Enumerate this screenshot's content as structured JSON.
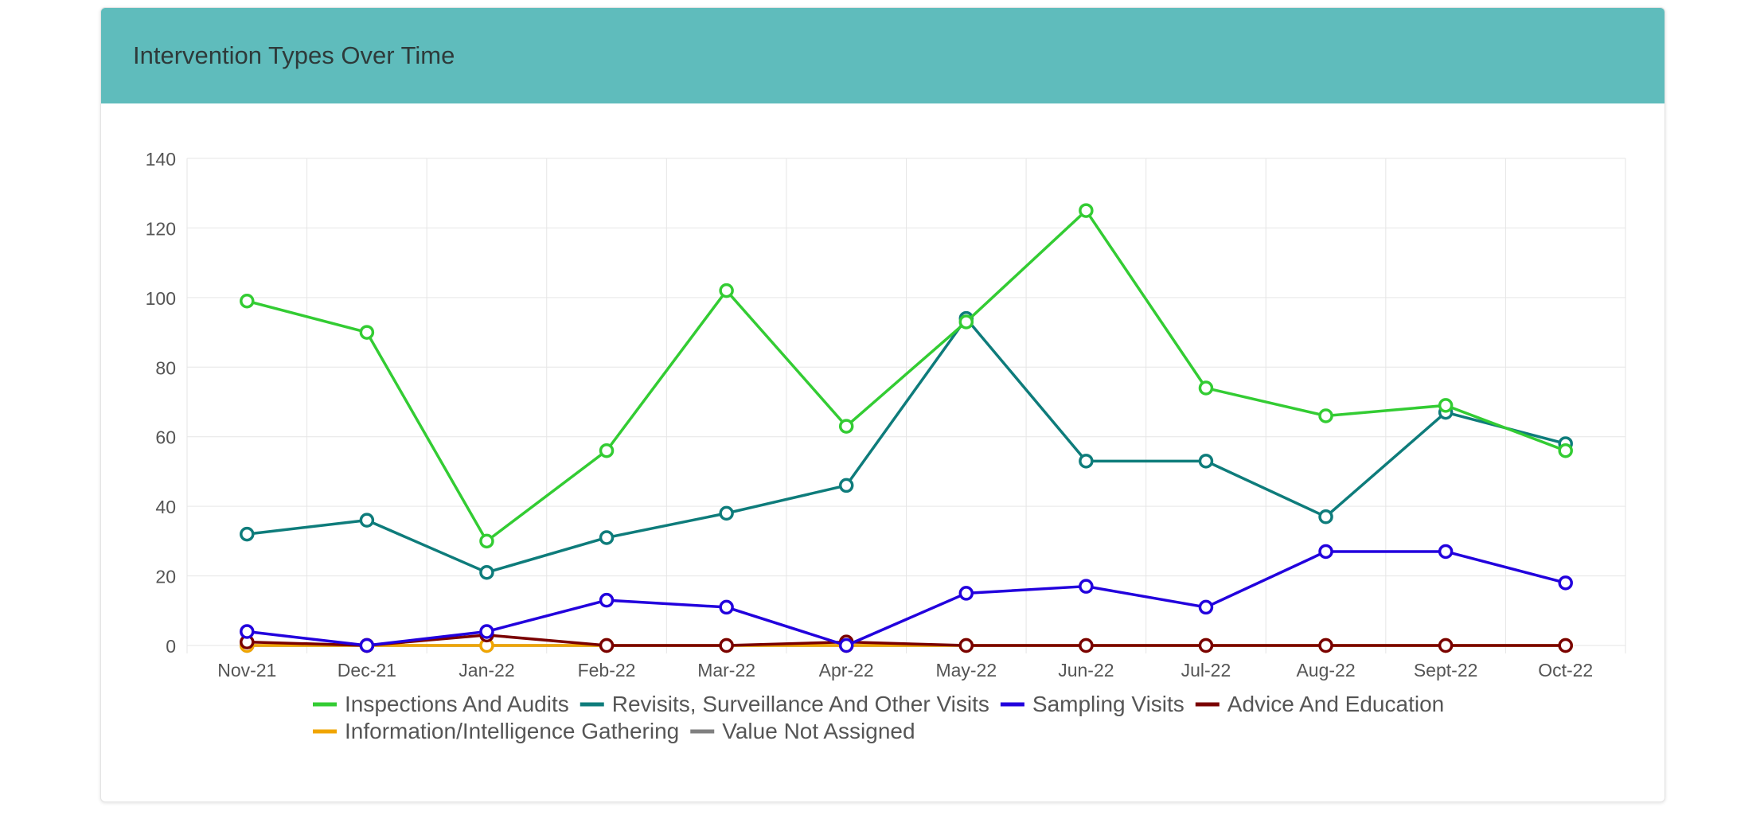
{
  "card": {
    "title": "Intervention Types Over Time"
  },
  "chart_data": {
    "type": "line",
    "title": "",
    "xlabel": "",
    "ylabel": "",
    "ylim": [
      0,
      140
    ],
    "yticks": [
      0,
      20,
      40,
      60,
      80,
      100,
      120,
      140
    ],
    "grid": true,
    "legend_position": "bottom",
    "categories": [
      "Nov-21",
      "Dec-21",
      "Jan-22",
      "Feb-22",
      "Mar-22",
      "Apr-22",
      "May-22",
      "Jun-22",
      "Jul-22",
      "Aug-22",
      "Sept-22",
      "Oct-22"
    ],
    "series": [
      {
        "name": "Value Not Assigned",
        "color": "#808080",
        "values": [
          0,
          0,
          0,
          0,
          0,
          0,
          0,
          0,
          0,
          0,
          0,
          0
        ]
      },
      {
        "name": "Information/Intelligence Gathering",
        "color": "#f0a500",
        "values": [
          0,
          0,
          0,
          0,
          0,
          0,
          0,
          0,
          0,
          0,
          0,
          0
        ]
      },
      {
        "name": "Advice And Education",
        "color": "#7a0000",
        "values": [
          1,
          0,
          3,
          0,
          0,
          1,
          0,
          0,
          0,
          0,
          0,
          0
        ]
      },
      {
        "name": "Sampling Visits",
        "color": "#2200dd",
        "values": [
          4,
          0,
          4,
          13,
          11,
          0,
          15,
          17,
          11,
          27,
          27,
          18
        ]
      },
      {
        "name": "Revisits, Surveillance And Other Visits",
        "color": "#0e7c7b",
        "values": [
          32,
          36,
          21,
          31,
          38,
          46,
          94,
          53,
          53,
          37,
          67,
          58
        ]
      },
      {
        "name": "Inspections And Audits",
        "color": "#33cc33",
        "values": [
          99,
          90,
          30,
          56,
          102,
          63,
          93,
          125,
          74,
          66,
          69,
          56
        ]
      }
    ],
    "legend_order": [
      "Inspections And Audits",
      "Revisits, Surveillance And Other Visits",
      "Sampling Visits",
      "Advice And Education",
      "Information/Intelligence Gathering",
      "Value Not Assigned"
    ]
  }
}
